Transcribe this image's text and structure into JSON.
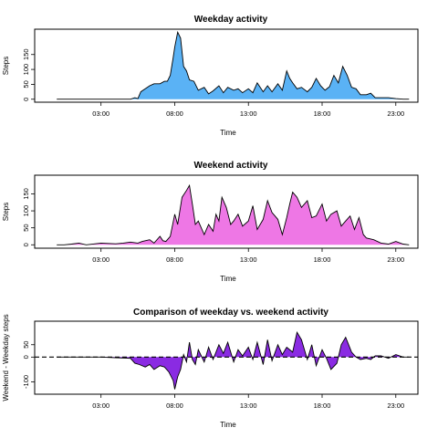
{
  "chart_data": [
    {
      "type": "area",
      "title": "Weekday activity",
      "xlabel": "Time",
      "ylabel": "Steps",
      "fill": "#5ab2f5",
      "xlim": [
        -1.5,
        24.5
      ],
      "ylim": [
        -10,
        235
      ],
      "x_ticks": [
        3,
        8,
        13,
        18,
        23
      ],
      "x_tick_labels": [
        "03:00",
        "08:00",
        "13:00",
        "18:00",
        "23:00"
      ],
      "y_ticks": [
        0,
        50,
        100,
        150
      ],
      "y_tick_labels": [
        "0",
        "50",
        "100",
        "150"
      ],
      "baseline_dashed": false,
      "x": [
        0,
        1,
        2,
        3,
        4,
        4.5,
        5,
        5.3,
        5.5,
        5.7,
        6,
        6.3,
        6.6,
        7,
        7.3,
        7.5,
        7.7,
        7.9,
        8,
        8.2,
        8.4,
        8.6,
        8.8,
        9,
        9.3,
        9.6,
        10,
        10.3,
        10.6,
        11,
        11.3,
        11.6,
        12,
        12.3,
        12.6,
        13,
        13.3,
        13.6,
        14,
        14.3,
        14.6,
        15,
        15.3,
        15.6,
        15.8,
        16,
        16.3,
        16.6,
        17,
        17.3,
        17.6,
        17.9,
        18.2,
        18.5,
        18.8,
        19.1,
        19.4,
        19.7,
        20,
        20.3,
        20.6,
        21,
        21.3,
        21.6,
        22,
        22.5,
        23,
        23.5,
        23.9
      ],
      "y": [
        0,
        0,
        0,
        0,
        0,
        0,
        0,
        5,
        2,
        25,
        35,
        45,
        52,
        52,
        60,
        60,
        80,
        140,
        175,
        225,
        205,
        110,
        95,
        65,
        60,
        30,
        40,
        18,
        28,
        45,
        22,
        40,
        30,
        35,
        22,
        35,
        22,
        55,
        25,
        45,
        25,
        52,
        30,
        95,
        70,
        55,
        35,
        40,
        25,
        40,
        70,
        45,
        30,
        42,
        80,
        55,
        110,
        80,
        40,
        35,
        15,
        15,
        20,
        5,
        5,
        5,
        2,
        0,
        0
      ]
    },
    {
      "type": "area",
      "title": "Weekend activity",
      "xlabel": "Time",
      "ylabel": "Steps",
      "fill": "#ee77e5",
      "xlim": [
        -1.5,
        24.5
      ],
      "ylim": [
        -10,
        205
      ],
      "x_ticks": [
        3,
        8,
        13,
        18,
        23
      ],
      "x_tick_labels": [
        "03:00",
        "08:00",
        "13:00",
        "18:00",
        "23:00"
      ],
      "y_ticks": [
        0,
        50,
        100,
        150
      ],
      "y_tick_labels": [
        "0",
        "50",
        "100",
        "150"
      ],
      "baseline_dashed": false,
      "x": [
        0,
        0.5,
        1,
        1.5,
        2,
        3,
        4,
        4.5,
        5,
        5.5,
        5.8,
        6,
        6.3,
        6.6,
        7,
        7.2,
        7.4,
        7.7,
        8,
        8.2,
        8.5,
        8.8,
        9,
        9.2,
        9.4,
        9.6,
        10,
        10.3,
        10.6,
        10.8,
        11,
        11.2,
        11.5,
        11.8,
        12,
        12.3,
        12.6,
        13,
        13.3,
        13.6,
        14,
        14.3,
        14.6,
        15,
        15.3,
        15.6,
        15.8,
        16,
        16.3,
        16.6,
        17,
        17.3,
        17.6,
        18,
        18.3,
        18.6,
        19,
        19.3,
        19.6,
        19.9,
        20.2,
        20.5,
        20.8,
        21,
        21.5,
        22,
        22.5,
        23,
        23.5,
        23.9
      ],
      "y": [
        0,
        0,
        2,
        5,
        0,
        5,
        3,
        5,
        8,
        5,
        10,
        12,
        15,
        5,
        25,
        12,
        10,
        25,
        90,
        60,
        140,
        160,
        175,
        120,
        60,
        70,
        30,
        60,
        40,
        90,
        70,
        140,
        110,
        60,
        70,
        90,
        55,
        70,
        115,
        45,
        75,
        130,
        95,
        75,
        30,
        80,
        120,
        155,
        140,
        110,
        130,
        80,
        85,
        120,
        70,
        90,
        100,
        55,
        70,
        85,
        45,
        80,
        30,
        20,
        15,
        5,
        2,
        10,
        2,
        0
      ]
    },
    {
      "type": "area",
      "title": "Comparison of weekday vs. weekend activity",
      "xlabel": "Time",
      "ylabel": "Weekend - Weekday steps",
      "fill": "#8a2be2",
      "xlim": [
        -1.5,
        24.5
      ],
      "ylim": [
        -150,
        145
      ],
      "x_ticks": [
        3,
        8,
        13,
        18,
        23
      ],
      "x_tick_labels": [
        "03:00",
        "08:00",
        "13:00",
        "18:00",
        "23:00"
      ],
      "y_ticks": [
        -100,
        0,
        50
      ],
      "y_tick_labels": [
        "-100",
        "0",
        "50"
      ],
      "baseline_dashed": true,
      "x": [
        0,
        1,
        2,
        3,
        4,
        5,
        5.3,
        5.6,
        6,
        6.3,
        6.6,
        7,
        7.3,
        7.6,
        7.9,
        8,
        8.2,
        8.4,
        8.6,
        8.8,
        9,
        9.2,
        9.4,
        9.6,
        10,
        10.3,
        10.6,
        11,
        11.3,
        11.6,
        12,
        12.3,
        12.6,
        13,
        13.3,
        13.6,
        14,
        14.3,
        14.6,
        15,
        15.3,
        15.6,
        16,
        16.3,
        16.6,
        17,
        17.3,
        17.6,
        18,
        18.3,
        18.6,
        19,
        19.3,
        19.6,
        20,
        20.3,
        20.6,
        21,
        21.3,
        21.6,
        22,
        22.5,
        23,
        23.5,
        23.9
      ],
      "y": [
        0,
        0,
        0,
        0,
        -3,
        -5,
        -25,
        -30,
        -40,
        -30,
        -50,
        -35,
        -40,
        -60,
        -95,
        -130,
        -80,
        -50,
        10,
        -20,
        60,
        -10,
        -30,
        30,
        -20,
        40,
        -10,
        50,
        15,
        60,
        -20,
        30,
        5,
        40,
        -10,
        60,
        -30,
        70,
        -15,
        50,
        10,
        40,
        20,
        100,
        70,
        -10,
        50,
        -35,
        30,
        -5,
        -50,
        -25,
        50,
        80,
        20,
        0,
        -10,
        -5,
        -10,
        5,
        5,
        -5,
        10,
        0,
        0
      ]
    }
  ]
}
